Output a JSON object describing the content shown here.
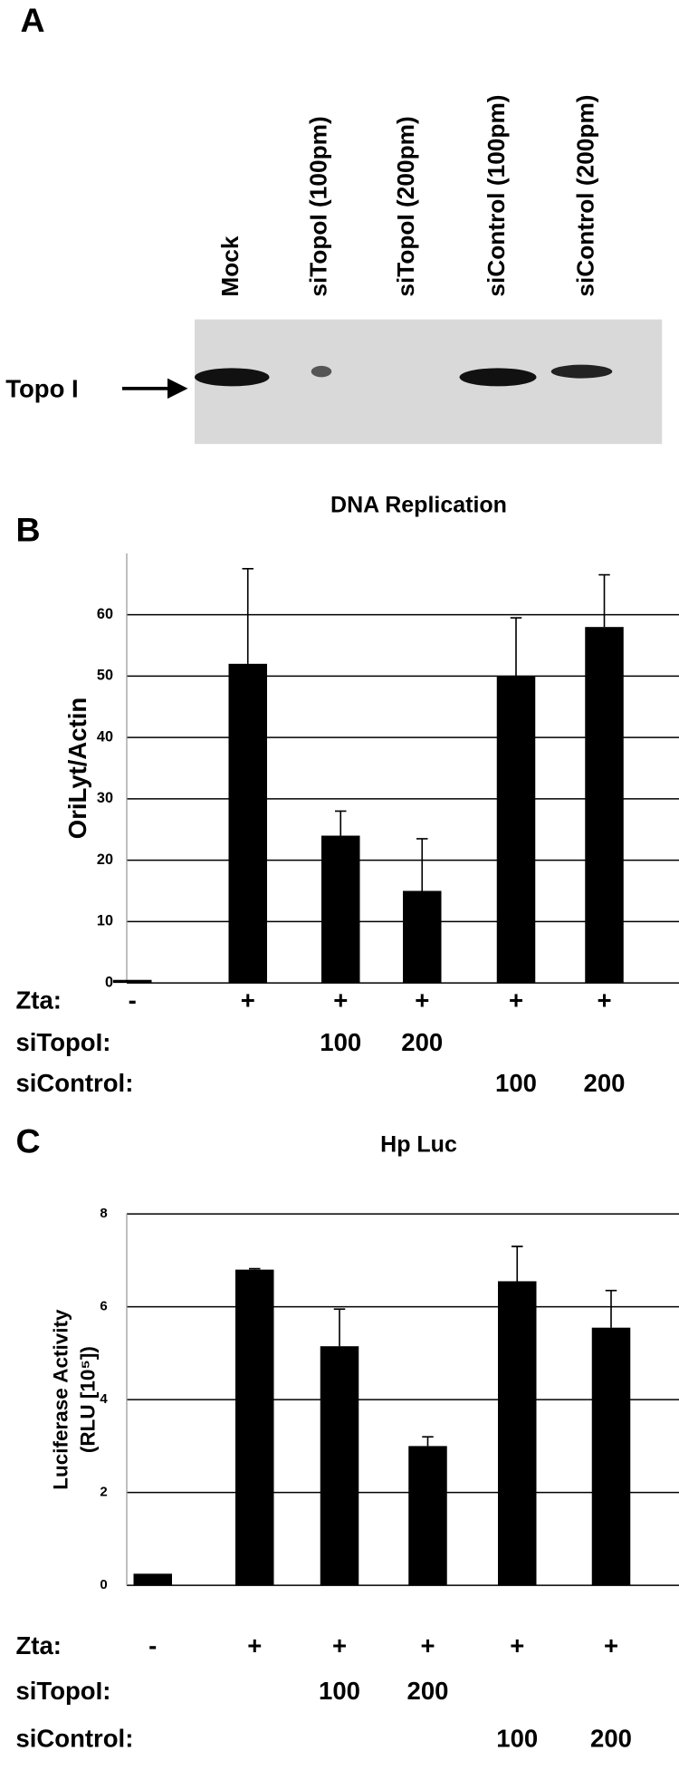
{
  "blot": {
    "label": "A",
    "lanes": [
      "Mock",
      "siTopoI (100pm)",
      "siTopoI (200pm)",
      "siControl (100pm)",
      "siControl (200pm)"
    ],
    "band_label": "Topo I"
  },
  "chart_data": [
    {
      "type": "bar",
      "label": "B",
      "title": "DNA Replication",
      "ylabel": [
        "OriLyt/Actin"
      ],
      "values": [
        0.5,
        52,
        24,
        15,
        50,
        58
      ],
      "errors": [
        null,
        15.5,
        4,
        8.5,
        9.5,
        8.5
      ],
      "color": "#000000",
      "ylim": [
        0,
        70
      ],
      "yticks": [
        0,
        10,
        20,
        30,
        40,
        50,
        60
      ],
      "grid": true,
      "conditions": [
        {
          "label": "Zta:",
          "values": [
            "-",
            "+",
            "+",
            "+",
            "+",
            "+"
          ]
        },
        {
          "label": "siTopoI:",
          "values": [
            null,
            null,
            "100",
            "200",
            null,
            null
          ]
        },
        {
          "label": "siControl:",
          "values": [
            null,
            null,
            null,
            null,
            "100",
            "200"
          ]
        }
      ]
    },
    {
      "type": "bar",
      "label": "C",
      "title": "Hp Luc",
      "ylabel": [
        "Luciferase Activity",
        "(RLU [10⁵])"
      ],
      "values": [
        0.25,
        6.8,
        5.15,
        3.0,
        6.55,
        5.55
      ],
      "errors": [
        null,
        0.02,
        0.8,
        0.2,
        0.75,
        0.8
      ],
      "color": "#000000",
      "ylim": [
        0,
        8
      ],
      "yticks": [
        0,
        2,
        4,
        6,
        8
      ],
      "grid": true,
      "conditions": [
        {
          "label": "Zta:",
          "values": [
            "-",
            "+",
            "+",
            "+",
            "+",
            "+"
          ]
        },
        {
          "label": "siTopoI:",
          "values": [
            null,
            null,
            "100",
            "200",
            null,
            null
          ]
        },
        {
          "label": "siControl:",
          "values": [
            null,
            null,
            null,
            null,
            "100",
            "200"
          ]
        }
      ]
    }
  ]
}
